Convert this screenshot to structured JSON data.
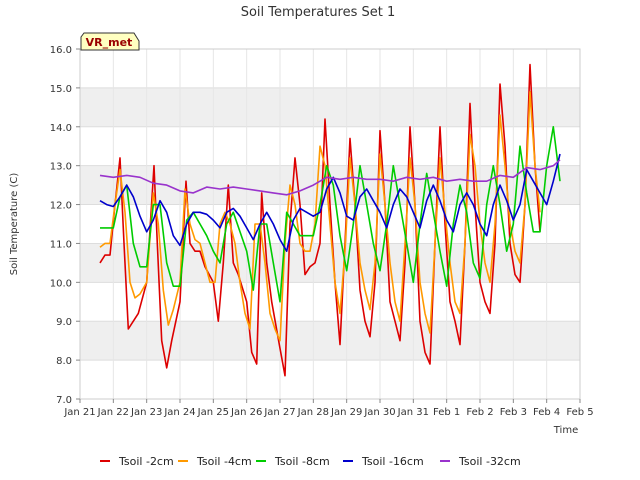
{
  "chart_data": {
    "type": "line",
    "title": "Soil Temperatures Set 1",
    "xlabel": "Time",
    "ylabel": "Soil Temperature (C)",
    "badge": "VR_met",
    "ylim": [
      7.0,
      16.0
    ],
    "xlim": [
      0,
      15
    ],
    "yticks": [
      "7.0",
      "8.0",
      "9.0",
      "10.0",
      "11.0",
      "12.0",
      "13.0",
      "14.0",
      "15.0",
      "16.0"
    ],
    "xtick_labels": [
      "Jan 21",
      "Jan 22",
      "Jan 23",
      "Jan 24",
      "Jan 25",
      "Jan 26",
      "Jan 27",
      "Jan 28",
      "Jan 29",
      "Jan 30",
      "Jan 31",
      "Feb 1",
      "Feb 2",
      "Feb 3",
      "Feb 4",
      "Feb 5"
    ],
    "grid": true,
    "legend_position": "bottom",
    "series": [
      {
        "name": "Tsoil -2cm",
        "color": "#dd0000",
        "x": [
          0.6,
          0.75,
          0.9,
          1.05,
          1.2,
          1.32,
          1.45,
          1.6,
          1.75,
          2.0,
          2.22,
          2.32,
          2.45,
          2.6,
          2.75,
          3.0,
          3.18,
          3.3,
          3.45,
          3.6,
          3.75,
          4.0,
          4.15,
          4.3,
          4.45,
          4.6,
          4.75,
          5.0,
          5.15,
          5.3,
          5.45,
          5.6,
          5.75,
          6.0,
          6.15,
          6.3,
          6.45,
          6.6,
          6.75,
          6.9,
          7.05,
          7.2,
          7.35,
          7.5,
          7.65,
          7.8,
          7.95,
          8.1,
          8.25,
          8.4,
          8.55,
          8.7,
          8.85,
          9.0,
          9.15,
          9.3,
          9.45,
          9.6,
          9.75,
          9.9,
          10.05,
          10.2,
          10.35,
          10.5,
          10.65,
          10.8,
          10.95,
          11.1,
          11.25,
          11.4,
          11.55,
          11.7,
          11.85,
          12.0,
          12.15,
          12.3,
          12.45,
          12.6,
          12.75,
          12.9,
          13.05,
          13.2,
          13.35,
          13.5,
          13.65,
          13.8,
          13.95,
          14.1,
          14.25,
          14.4
        ],
        "y": [
          10.5,
          10.7,
          10.7,
          12.0,
          13.2,
          11.0,
          8.8,
          9.0,
          9.2,
          10.0,
          13.0,
          11.0,
          8.5,
          7.8,
          8.5,
          9.5,
          12.6,
          11.0,
          10.8,
          10.8,
          10.4,
          10.0,
          9.0,
          10.5,
          12.5,
          10.5,
          10.2,
          9.5,
          8.2,
          7.9,
          12.3,
          10.5,
          9.5,
          8.3,
          7.6,
          11.5,
          13.2,
          12.0,
          10.2,
          10.4,
          10.5,
          11.0,
          14.2,
          12.0,
          10.0,
          8.4,
          11.0,
          13.7,
          12.0,
          9.8,
          9.0,
          8.6,
          10.0,
          13.9,
          12.0,
          9.5,
          9.0,
          8.5,
          10.5,
          14.0,
          12.0,
          9.0,
          8.2,
          7.9,
          11.0,
          14.0,
          11.5,
          9.5,
          9.0,
          8.4,
          11.0,
          14.6,
          12.0,
          10.0,
          9.5,
          9.2,
          11.0,
          15.1,
          13.5,
          11.0,
          10.2,
          10.0,
          12.0,
          15.6,
          13.0,
          11.3,
          null,
          null,
          null,
          null
        ]
      },
      {
        "name": "Tsoil -4cm",
        "color": "#ff9900",
        "x": [
          0.6,
          0.75,
          0.9,
          1.05,
          1.2,
          1.35,
          1.5,
          1.65,
          1.8,
          2.0,
          2.2,
          2.35,
          2.5,
          2.65,
          2.8,
          3.0,
          3.15,
          3.3,
          3.45,
          3.6,
          3.75,
          3.9,
          4.05,
          4.2,
          4.35,
          4.5,
          4.65,
          4.8,
          4.95,
          5.1,
          5.25,
          5.4,
          5.55,
          5.7,
          5.85,
          6.0,
          6.15,
          6.3,
          6.45,
          6.6,
          6.75,
          6.9,
          7.05,
          7.2,
          7.35,
          7.5,
          7.65,
          7.8,
          7.95,
          8.1,
          8.25,
          8.4,
          8.55,
          8.7,
          8.85,
          9.0,
          9.15,
          9.3,
          9.45,
          9.6,
          9.75,
          9.9,
          10.05,
          10.2,
          10.35,
          10.5,
          10.65,
          10.8,
          10.95,
          11.1,
          11.25,
          11.4,
          11.55,
          11.7,
          11.85,
          12.0,
          12.15,
          12.3,
          12.45,
          12.6,
          12.75,
          12.9,
          13.05,
          13.2,
          13.35,
          13.5,
          13.65,
          13.8,
          13.95,
          14.1,
          14.25,
          14.4
        ],
        "y": [
          10.9,
          11.0,
          11.0,
          12.0,
          12.9,
          11.8,
          10.0,
          9.6,
          9.7,
          10.0,
          12.3,
          11.5,
          9.8,
          8.9,
          9.3,
          10.0,
          12.4,
          11.5,
          11.1,
          11.0,
          10.5,
          10.0,
          10.0,
          11.5,
          11.8,
          11.5,
          11.0,
          10.0,
          9.2,
          8.8,
          11.5,
          11.5,
          10.5,
          9.2,
          8.8,
          8.5,
          11.0,
          12.5,
          12.0,
          11.0,
          10.8,
          10.8,
          11.5,
          13.5,
          13.0,
          11.5,
          10.0,
          9.2,
          10.8,
          13.2,
          12.0,
          10.5,
          9.8,
          9.3,
          10.5,
          13.3,
          12.0,
          10.5,
          9.5,
          9.0,
          11.0,
          13.2,
          12.0,
          10.0,
          9.2,
          8.7,
          11.0,
          13.2,
          11.8,
          10.5,
          9.5,
          9.2,
          11.0,
          13.8,
          13.0,
          11.5,
          10.5,
          10.0,
          11.5,
          14.3,
          13.0,
          11.5,
          10.8,
          10.5,
          12.0,
          14.9,
          13.0,
          11.8,
          null,
          null,
          null,
          null
        ]
      },
      {
        "name": "Tsoil -8cm",
        "color": "#00cc00",
        "x": [
          0.6,
          0.8,
          1.0,
          1.2,
          1.4,
          1.6,
          1.8,
          2.0,
          2.2,
          2.4,
          2.6,
          2.8,
          3.0,
          3.2,
          3.4,
          3.6,
          3.8,
          4.0,
          4.2,
          4.4,
          4.6,
          4.8,
          5.0,
          5.2,
          5.4,
          5.6,
          5.8,
          6.0,
          6.2,
          6.4,
          6.6,
          6.8,
          7.0,
          7.2,
          7.4,
          7.6,
          7.8,
          8.0,
          8.2,
          8.4,
          8.6,
          8.8,
          9.0,
          9.2,
          9.4,
          9.6,
          9.8,
          10.0,
          10.2,
          10.4,
          10.6,
          10.8,
          11.0,
          11.2,
          11.4,
          11.6,
          11.8,
          12.0,
          12.2,
          12.4,
          12.6,
          12.8,
          13.0,
          13.2,
          13.4,
          13.6,
          13.8,
          14.0,
          14.2,
          14.4
        ],
        "y": [
          11.4,
          11.4,
          11.4,
          12.2,
          12.5,
          11.0,
          10.4,
          10.4,
          12.0,
          12.0,
          10.5,
          9.9,
          9.9,
          11.6,
          11.8,
          11.5,
          11.2,
          10.8,
          10.5,
          11.5,
          11.8,
          11.3,
          10.8,
          9.8,
          11.5,
          11.5,
          10.5,
          9.5,
          11.8,
          11.5,
          11.2,
          11.2,
          11.2,
          12.0,
          13.0,
          12.5,
          11.2,
          10.3,
          11.5,
          13.0,
          12.0,
          11.0,
          10.3,
          11.5,
          13.0,
          12.0,
          11.0,
          10.0,
          11.5,
          12.8,
          11.8,
          10.8,
          9.9,
          11.5,
          12.5,
          11.8,
          10.5,
          10.1,
          12.0,
          13.0,
          12.0,
          10.8,
          11.5,
          13.5,
          12.3,
          11.3,
          11.3,
          13.0,
          14.0,
          12.6
        ]
      },
      {
        "name": "Tsoil -16cm",
        "color": "#0000cc",
        "x": [
          0.6,
          0.8,
          1.0,
          1.2,
          1.4,
          1.6,
          1.8,
          2.0,
          2.2,
          2.4,
          2.6,
          2.8,
          3.0,
          3.2,
          3.4,
          3.6,
          3.8,
          4.0,
          4.2,
          4.4,
          4.6,
          4.8,
          5.0,
          5.2,
          5.4,
          5.6,
          5.8,
          6.0,
          6.2,
          6.4,
          6.6,
          6.8,
          7.0,
          7.2,
          7.4,
          7.6,
          7.8,
          8.0,
          8.2,
          8.4,
          8.6,
          8.8,
          9.0,
          9.2,
          9.4,
          9.6,
          9.8,
          10.0,
          10.2,
          10.4,
          10.6,
          10.8,
          11.0,
          11.2,
          11.4,
          11.6,
          11.8,
          12.0,
          12.2,
          12.4,
          12.6,
          12.8,
          13.0,
          13.2,
          13.4,
          13.6,
          13.8,
          14.0,
          14.2,
          14.4
        ],
        "y": [
          12.1,
          12.0,
          11.95,
          12.2,
          12.5,
          12.2,
          11.7,
          11.3,
          11.6,
          12.1,
          11.8,
          11.2,
          10.95,
          11.5,
          11.8,
          11.8,
          11.75,
          11.6,
          11.4,
          11.8,
          11.9,
          11.7,
          11.4,
          11.1,
          11.5,
          11.8,
          11.5,
          11.1,
          10.8,
          11.6,
          11.9,
          11.8,
          11.7,
          11.8,
          12.4,
          12.7,
          12.3,
          11.7,
          11.6,
          12.2,
          12.4,
          12.1,
          11.8,
          11.4,
          12.0,
          12.4,
          12.2,
          11.8,
          11.4,
          12.1,
          12.5,
          12.1,
          11.6,
          11.3,
          12.0,
          12.3,
          12.0,
          11.5,
          11.2,
          12.0,
          12.5,
          12.1,
          11.6,
          12.0,
          12.9,
          12.6,
          12.3,
          12.0,
          12.6,
          13.3
        ]
      },
      {
        "name": "Tsoil -32cm",
        "color": "#9933cc",
        "x": [
          0.6,
          1.0,
          1.4,
          1.8,
          2.2,
          2.6,
          3.0,
          3.4,
          3.8,
          4.2,
          4.6,
          5.0,
          5.4,
          5.8,
          6.2,
          6.6,
          7.0,
          7.4,
          7.8,
          8.2,
          8.6,
          9.0,
          9.4,
          9.8,
          10.2,
          10.6,
          11.0,
          11.4,
          11.8,
          12.2,
          12.6,
          13.0,
          13.4,
          13.8,
          14.2,
          14.4
        ],
        "y": [
          12.75,
          12.7,
          12.75,
          12.7,
          12.55,
          12.5,
          12.35,
          12.3,
          12.45,
          12.4,
          12.45,
          12.4,
          12.35,
          12.3,
          12.25,
          12.35,
          12.5,
          12.7,
          12.65,
          12.7,
          12.65,
          12.65,
          12.6,
          12.7,
          12.65,
          12.7,
          12.6,
          12.65,
          12.6,
          12.6,
          12.75,
          12.7,
          12.95,
          12.9,
          13.0,
          13.15
        ]
      }
    ]
  }
}
